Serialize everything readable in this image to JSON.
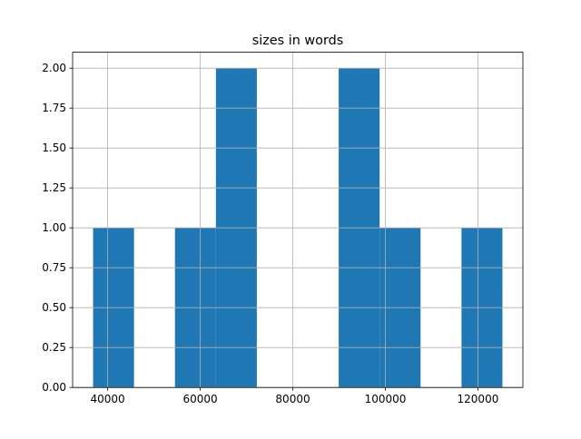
{
  "chart_data": {
    "type": "histogram",
    "title": "sizes in words",
    "bins": [
      36850,
      45695,
      54540,
      63385,
      72230,
      81075,
      89920,
      98765,
      107610,
      116455,
      125300
    ],
    "counts": [
      1,
      0,
      1,
      2,
      0,
      0,
      2,
      1,
      0,
      1
    ],
    "color": "#1f77b4",
    "xlim": [
      32428,
      129722
    ],
    "xticks": [
      40000,
      60000,
      80000,
      100000,
      120000
    ],
    "ylim": [
      0,
      2.1
    ],
    "yticks": [
      {
        "value": 0,
        "label": "0.00"
      },
      {
        "value": 0.25,
        "label": "0.25"
      },
      {
        "value": 0.5,
        "label": "0.50"
      },
      {
        "value": 0.75,
        "label": "0.75"
      },
      {
        "value": 1,
        "label": "1.00"
      },
      {
        "value": 1.25,
        "label": "1.25"
      },
      {
        "value": 1.5,
        "label": "1.50"
      },
      {
        "value": 1.75,
        "label": "1.75"
      },
      {
        "value": 2,
        "label": "2.00"
      }
    ],
    "grid": true
  }
}
